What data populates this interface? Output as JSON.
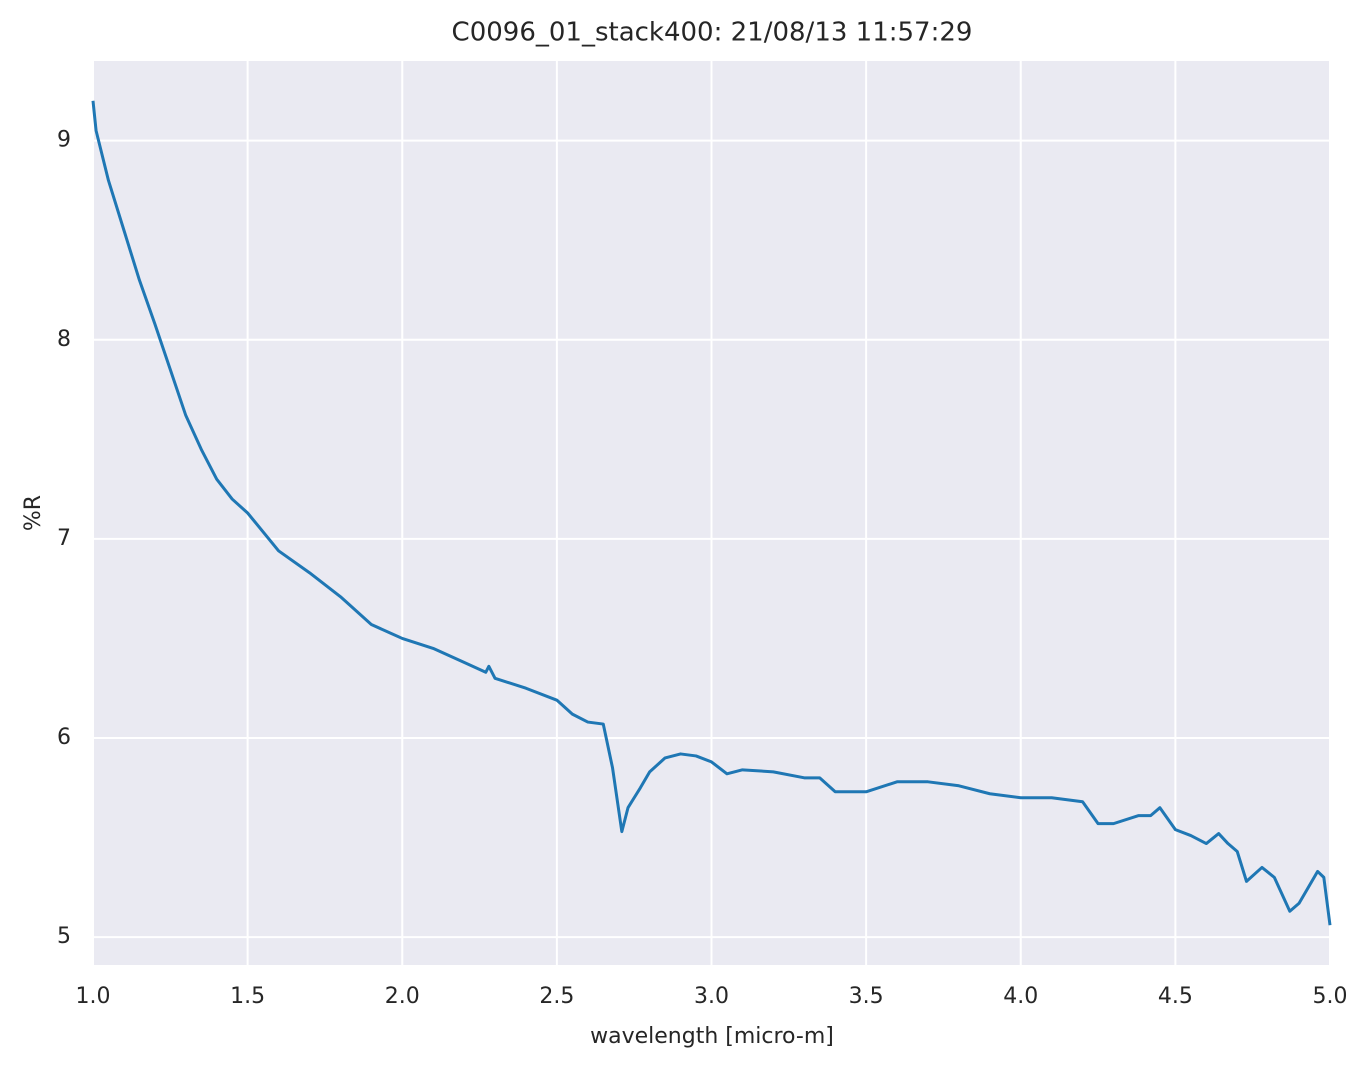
{
  "chart_data": {
    "type": "line",
    "title": "C0096_01_stack400:  21/08/13 11:57:29",
    "x_label": "wavelength [micro-m]",
    "y_label": "%R",
    "x": [
      1.0,
      1.01,
      1.05,
      1.1,
      1.15,
      1.2,
      1.25,
      1.3,
      1.35,
      1.4,
      1.45,
      1.5,
      1.6,
      1.7,
      1.8,
      1.9,
      2.0,
      2.1,
      2.2,
      2.27,
      2.28,
      2.3,
      2.4,
      2.5,
      2.55,
      2.6,
      2.65,
      2.68,
      2.71,
      2.73,
      2.77,
      2.8,
      2.85,
      2.9,
      2.95,
      3.0,
      3.05,
      3.1,
      3.2,
      3.3,
      3.35,
      3.4,
      3.5,
      3.6,
      3.7,
      3.8,
      3.9,
      4.0,
      4.1,
      4.2,
      4.25,
      4.3,
      4.38,
      4.42,
      4.45,
      4.5,
      4.55,
      4.6,
      4.64,
      4.67,
      4.7,
      4.73,
      4.78,
      4.82,
      4.87,
      4.9,
      4.96,
      4.98,
      5.0
    ],
    "series": [
      {
        "name": "%R",
        "color": "#1f77b4",
        "values": [
          9.2,
          9.05,
          8.8,
          8.55,
          8.3,
          8.08,
          7.85,
          7.62,
          7.45,
          7.3,
          7.2,
          7.13,
          6.94,
          6.83,
          6.71,
          6.57,
          6.5,
          6.45,
          6.38,
          6.33,
          6.36,
          6.3,
          6.25,
          6.19,
          6.12,
          6.08,
          6.07,
          5.85,
          5.53,
          5.65,
          5.75,
          5.83,
          5.9,
          5.92,
          5.91,
          5.88,
          5.82,
          5.84,
          5.83,
          5.8,
          5.8,
          5.73,
          5.73,
          5.78,
          5.78,
          5.76,
          5.72,
          5.7,
          5.7,
          5.68,
          5.57,
          5.57,
          5.61,
          5.61,
          5.65,
          5.54,
          5.51,
          5.47,
          5.52,
          5.47,
          5.43,
          5.28,
          5.35,
          5.3,
          5.13,
          5.17,
          5.33,
          5.3,
          5.06
        ]
      }
    ],
    "xlim": [
      1.0,
      5.0
    ],
    "ylim": [
      4.86,
      9.4
    ],
    "xticks": [
      {
        "value": 1,
        "label": "1.0"
      },
      1.5,
      {
        "value": 2,
        "label": "2.0"
      },
      2.5,
      {
        "value": 3,
        "label": "3.0"
      },
      3.5,
      {
        "value": 4,
        "label": "4.0"
      },
      4.5,
      {
        "value": 5,
        "label": "5.0"
      }
    ],
    "yticks": [
      5,
      6,
      7,
      8,
      9
    ],
    "grid": true,
    "background": "#eaeaf2"
  }
}
